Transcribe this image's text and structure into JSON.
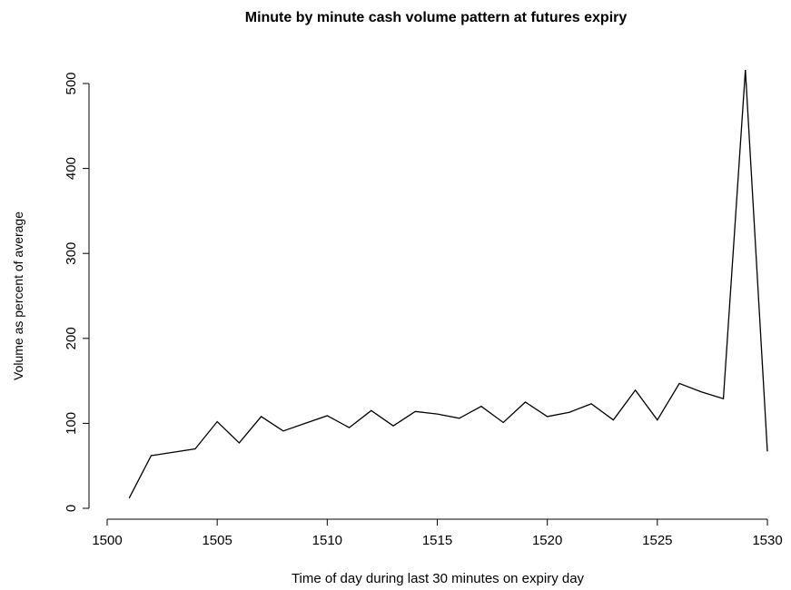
{
  "chart_data": {
    "type": "line",
    "title": "Minute by minute cash volume pattern at futures expiry",
    "x_label": "Time of day during last 30 minutes on expiry day",
    "y_label": "Volume as percent of average",
    "x": [
      1501,
      1502,
      1503,
      1504,
      1505,
      1506,
      1507,
      1508,
      1509,
      1510,
      1511,
      1512,
      1513,
      1514,
      1515,
      1516,
      1517,
      1518,
      1519,
      1520,
      1521,
      1522,
      1523,
      1524,
      1525,
      1526,
      1527,
      1528,
      1529,
      1530
    ],
    "series": [
      {
        "color": "#000000",
        "values": [
          12,
          62,
          66,
          70,
          102,
          77,
          108,
          91,
          100,
          109,
          95,
          115,
          97,
          114,
          111,
          106,
          120,
          101,
          125,
          108,
          113,
          123,
          104,
          139,
          104,
          147,
          137,
          129,
          516,
          67
        ]
      }
    ],
    "xlim": [
      1500,
      1530
    ],
    "xticks": [
      1500,
      1505,
      1510,
      1515,
      1520,
      1525,
      1530
    ],
    "ylim": [
      0,
      500
    ],
    "yticks": [
      0,
      100,
      200,
      300,
      400,
      500
    ]
  }
}
